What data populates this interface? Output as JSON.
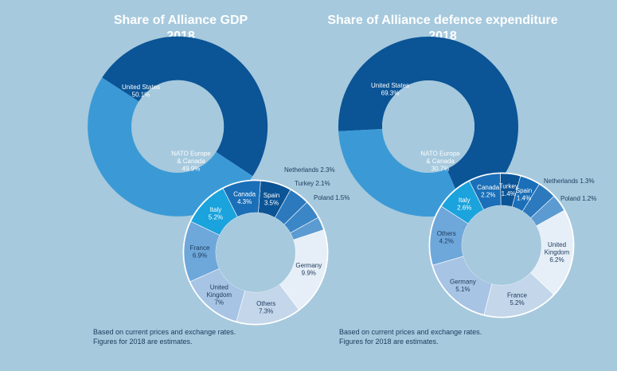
{
  "charts": [
    {
      "title_line1": "Share of Alliance GDP",
      "title_line2": "2018",
      "note_line1": "Based on current prices and exchange rates.",
      "note_line2": "Figures for 2018 are estimates."
    },
    {
      "title_line1": "Share of Alliance defence expenditure",
      "title_line2": "2018",
      "note_line1": "Based on current prices and exchange rates.",
      "note_line2": "Figures for 2018 are estimates."
    }
  ],
  "chart_data": [
    {
      "type": "pie",
      "title": "Share of Alliance GDP 2018",
      "outer": {
        "categories": [
          "United States",
          "NATO Europe & Canada"
        ],
        "values": [
          50.1,
          49.9
        ],
        "value_labels": [
          "50.1%",
          "49.9%"
        ],
        "colors": [
          "#0b5496",
          "#3b9ad6"
        ]
      },
      "breakdown": {
        "categories": [
          "Spain",
          "Netherlands",
          "Turkey",
          "Poland",
          "Germany",
          "Others",
          "United Kingdom",
          "France",
          "Italy",
          "Canada"
        ],
        "values": [
          3.5,
          2.3,
          2.1,
          1.5,
          9.9,
          7.3,
          7.0,
          6.9,
          5.2,
          4.3
        ],
        "value_labels": [
          "3.5%",
          "2.3%",
          "2.1%",
          "1.5%",
          "9.9%",
          "7.3%",
          "7%",
          "6.9%",
          "5.2%",
          "4.3%"
        ],
        "colors": [
          "#0b5496",
          "#2c79bd",
          "#3b86c6",
          "#5c9bd2",
          "#e6eef7",
          "#c3d6ea",
          "#a7c4e4",
          "#6ea7da",
          "#1aa3dc",
          "#1a6fb8"
        ]
      }
    },
    {
      "type": "pie",
      "title": "Share of Alliance defence expenditure 2018",
      "outer": {
        "categories": [
          "United States",
          "NATO Europe & Canada"
        ],
        "values": [
          69.3,
          30.7
        ],
        "value_labels": [
          "69.3%",
          "30.7%"
        ],
        "colors": [
          "#0b5496",
          "#3b9ad6"
        ]
      },
      "breakdown": {
        "categories": [
          "Turkey",
          "Spain",
          "Netherlands",
          "Poland",
          "United Kingdom",
          "France",
          "Germany",
          "Others",
          "Italy",
          "Canada"
        ],
        "values": [
          1.4,
          1.4,
          1.3,
          1.2,
          6.2,
          5.2,
          5.1,
          4.2,
          2.6,
          2.2
        ],
        "value_labels": [
          "1.4%",
          "1.4%",
          "1.3%",
          "1.2%",
          "6.2%",
          "5.2%",
          "5.1%",
          "4.2%",
          "2.6%",
          "2.2%"
        ],
        "colors": [
          "#0b5496",
          "#1a6fb8",
          "#2c79bd",
          "#5c9bd2",
          "#e6eef7",
          "#c3d6ea",
          "#a7c4e4",
          "#6ea7da",
          "#1aa3dc",
          "#1a6fb8"
        ]
      }
    }
  ]
}
